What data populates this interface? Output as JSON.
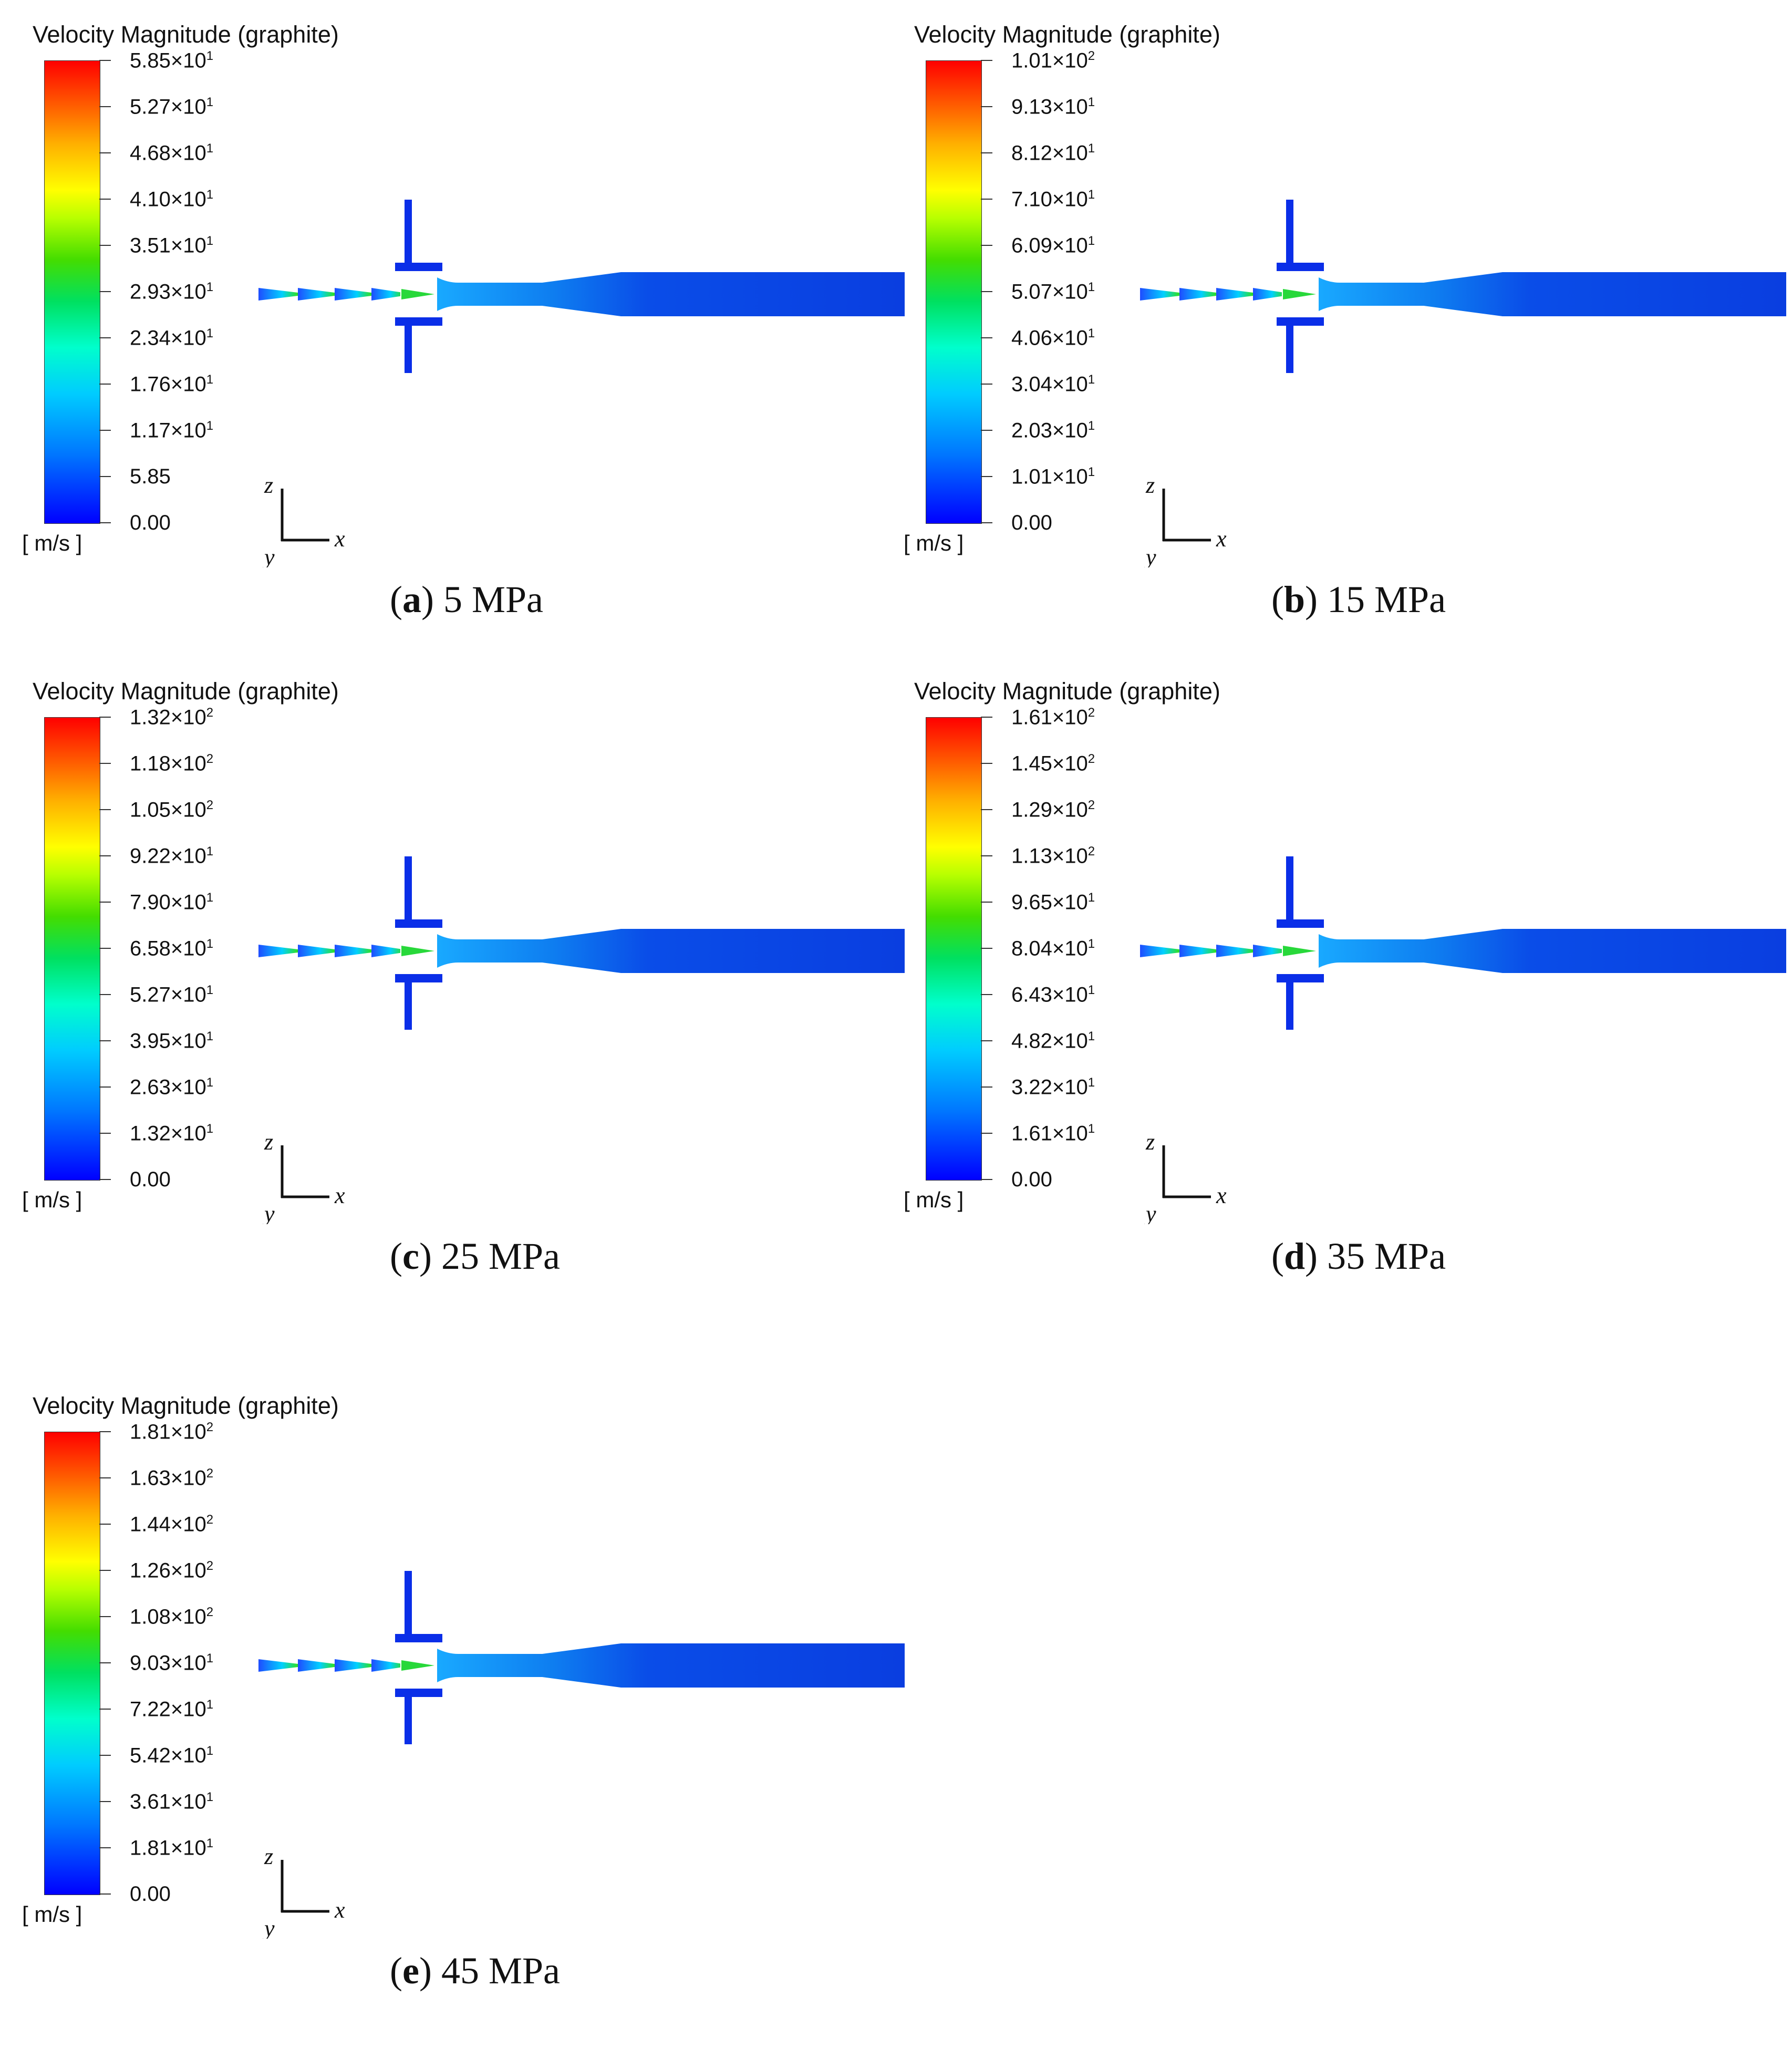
{
  "colorbar_title": "Velocity Magnitude (graphite)",
  "unit_label": "[ m/s ]",
  "axis_labels": {
    "z": "z",
    "x": "x",
    "y": "y"
  },
  "colors": {
    "high": "#ff0000",
    "mid": "#00e060",
    "low": "#0000ff",
    "flow_body": "#0a3ee0"
  },
  "panels": [
    {
      "letter": "a",
      "pressure": "5 MPa",
      "ticks": [
        {
          "m": "5.85",
          "e": "1"
        },
        {
          "m": "5.27",
          "e": "1"
        },
        {
          "m": "4.68",
          "e": "1"
        },
        {
          "m": "4.10",
          "e": "1"
        },
        {
          "m": "3.51",
          "e": "1"
        },
        {
          "m": "2.93",
          "e": "1"
        },
        {
          "m": "2.34",
          "e": "1"
        },
        {
          "m": "1.76",
          "e": "1"
        },
        {
          "m": "1.17",
          "e": "1"
        },
        {
          "m": "5.85",
          "e": ""
        },
        {
          "m": "0.00",
          "e": ""
        }
      ]
    },
    {
      "letter": "b",
      "pressure": "15 MPa",
      "ticks": [
        {
          "m": "1.01",
          "e": "2"
        },
        {
          "m": "9.13",
          "e": "1"
        },
        {
          "m": "8.12",
          "e": "1"
        },
        {
          "m": "7.10",
          "e": "1"
        },
        {
          "m": "6.09",
          "e": "1"
        },
        {
          "m": "5.07",
          "e": "1"
        },
        {
          "m": "4.06",
          "e": "1"
        },
        {
          "m": "3.04",
          "e": "1"
        },
        {
          "m": "2.03",
          "e": "1"
        },
        {
          "m": "1.01",
          "e": "1"
        },
        {
          "m": "0.00",
          "e": ""
        }
      ]
    },
    {
      "letter": "c",
      "pressure": "25 MPa",
      "ticks": [
        {
          "m": "1.32",
          "e": "2"
        },
        {
          "m": "1.18",
          "e": "2"
        },
        {
          "m": "1.05",
          "e": "2"
        },
        {
          "m": "9.22",
          "e": "1"
        },
        {
          "m": "7.90",
          "e": "1"
        },
        {
          "m": "6.58",
          "e": "1"
        },
        {
          "m": "5.27",
          "e": "1"
        },
        {
          "m": "3.95",
          "e": "1"
        },
        {
          "m": "2.63",
          "e": "1"
        },
        {
          "m": "1.32",
          "e": "1"
        },
        {
          "m": "0.00",
          "e": ""
        }
      ]
    },
    {
      "letter": "d",
      "pressure": "35 MPa",
      "ticks": [
        {
          "m": "1.61",
          "e": "2"
        },
        {
          "m": "1.45",
          "e": "2"
        },
        {
          "m": "1.29",
          "e": "2"
        },
        {
          "m": "1.13",
          "e": "2"
        },
        {
          "m": "9.65",
          "e": "1"
        },
        {
          "m": "8.04",
          "e": "1"
        },
        {
          "m": "6.43",
          "e": "1"
        },
        {
          "m": "4.82",
          "e": "1"
        },
        {
          "m": "3.22",
          "e": "1"
        },
        {
          "m": "1.61",
          "e": "1"
        },
        {
          "m": "0.00",
          "e": ""
        }
      ]
    },
    {
      "letter": "e",
      "pressure": "45 MPa",
      "ticks": [
        {
          "m": "1.81",
          "e": "2"
        },
        {
          "m": "1.63",
          "e": "2"
        },
        {
          "m": "1.44",
          "e": "2"
        },
        {
          "m": "1.26",
          "e": "2"
        },
        {
          "m": "1.08",
          "e": "2"
        },
        {
          "m": "9.03",
          "e": "1"
        },
        {
          "m": "7.22",
          "e": "1"
        },
        {
          "m": "5.42",
          "e": "1"
        },
        {
          "m": "3.61",
          "e": "1"
        },
        {
          "m": "1.81",
          "e": "1"
        },
        {
          "m": "0.00",
          "e": ""
        }
      ]
    }
  ]
}
